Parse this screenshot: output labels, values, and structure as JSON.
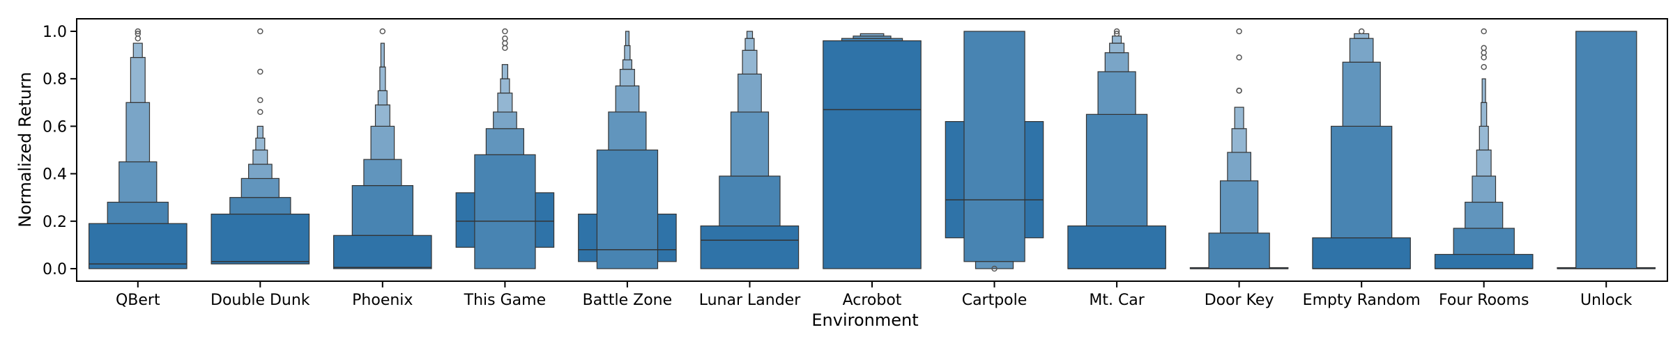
{
  "chart_data": {
    "type": "boxen",
    "xlabel": "Environment",
    "ylabel": "Normalized Return",
    "ylim": [
      -0.05,
      1.05
    ],
    "yticks": [
      0.0,
      0.2,
      0.4,
      0.6,
      0.8,
      1.0
    ],
    "ytick_labels": [
      "0.0",
      "0.2",
      "0.4",
      "0.6",
      "0.8",
      "1.0"
    ],
    "grid": false,
    "colors": {
      "box": "#2f73a8",
      "edge": "#333333",
      "outlier": "#555555"
    },
    "categories": [
      {
        "name": "QBert",
        "median": 0.02,
        "boxes": [
          [
            0.0,
            0.19
          ],
          [
            0.19,
            0.28
          ],
          [
            0.28,
            0.45
          ],
          [
            0.45,
            0.7
          ],
          [
            0.7,
            0.89
          ],
          [
            0.89,
            0.95
          ]
        ],
        "outliers": [
          0.97,
          0.99,
          1.0
        ]
      },
      {
        "name": "Double Dunk",
        "median": 0.03,
        "boxes": [
          [
            0.02,
            0.23
          ],
          [
            0.23,
            0.3
          ],
          [
            0.3,
            0.38
          ],
          [
            0.38,
            0.44
          ],
          [
            0.44,
            0.5
          ],
          [
            0.5,
            0.55
          ],
          [
            0.55,
            0.6
          ]
        ],
        "outliers": [
          0.66,
          0.71,
          0.83,
          1.0
        ]
      },
      {
        "name": "Phoenix",
        "median": 0.005,
        "boxes": [
          [
            0.0,
            0.14
          ],
          [
            0.14,
            0.35
          ],
          [
            0.35,
            0.46
          ],
          [
            0.46,
            0.6
          ],
          [
            0.6,
            0.69
          ],
          [
            0.69,
            0.75
          ],
          [
            0.75,
            0.85
          ],
          [
            0.85,
            0.95
          ]
        ],
        "outliers": [
          1.0
        ]
      },
      {
        "name": "This Game",
        "median": 0.2,
        "boxes": [
          [
            0.09,
            0.32
          ],
          [
            0.0,
            0.48
          ],
          [
            0.48,
            0.59
          ],
          [
            0.59,
            0.66
          ],
          [
            0.66,
            0.74
          ],
          [
            0.74,
            0.8
          ],
          [
            0.8,
            0.86
          ]
        ],
        "outliers": [
          0.93,
          0.95,
          0.97,
          1.0
        ]
      },
      {
        "name": "Battle Zone",
        "median": 0.08,
        "boxes": [
          [
            0.03,
            0.23
          ],
          [
            0.0,
            0.5
          ],
          [
            0.5,
            0.66
          ],
          [
            0.66,
            0.77
          ],
          [
            0.77,
            0.84
          ],
          [
            0.84,
            0.88
          ],
          [
            0.88,
            0.94
          ],
          [
            0.94,
            1.0
          ]
        ],
        "outliers": []
      },
      {
        "name": "Lunar Lander",
        "median": 0.12,
        "boxes": [
          [
            0.0,
            0.18
          ],
          [
            0.18,
            0.39
          ],
          [
            0.39,
            0.66
          ],
          [
            0.66,
            0.82
          ],
          [
            0.82,
            0.92
          ],
          [
            0.92,
            0.97
          ],
          [
            0.97,
            1.0
          ]
        ],
        "outliers": []
      },
      {
        "name": "Acrobot",
        "median": 0.67,
        "boxes": [
          [
            0.0,
            0.96
          ],
          [
            0.96,
            0.97
          ],
          [
            0.97,
            0.98
          ],
          [
            0.98,
            0.99
          ]
        ],
        "outliers": []
      },
      {
        "name": "Cartpole",
        "median": 0.29,
        "boxes": [
          [
            0.13,
            0.62
          ],
          [
            0.03,
            1.0
          ],
          [
            0.0,
            0.03
          ]
        ],
        "outliers": [
          0.0
        ]
      },
      {
        "name": "Mt. Car",
        "median": 0.0,
        "boxes": [
          [
            0.0,
            0.18
          ],
          [
            0.18,
            0.65
          ],
          [
            0.65,
            0.83
          ],
          [
            0.83,
            0.91
          ],
          [
            0.91,
            0.95
          ],
          [
            0.95,
            0.98
          ]
        ],
        "outliers": [
          0.99,
          1.0
        ]
      },
      {
        "name": "Door Key",
        "median": 0.0,
        "boxes": [
          [
            0.0,
            0.0
          ],
          [
            0.0,
            0.15
          ],
          [
            0.15,
            0.37
          ],
          [
            0.37,
            0.49
          ],
          [
            0.49,
            0.59
          ],
          [
            0.59,
            0.68
          ]
        ],
        "outliers": [
          0.75,
          0.75,
          0.89,
          1.0
        ]
      },
      {
        "name": "Empty Random",
        "median": 0.0,
        "boxes": [
          [
            0.0,
            0.13
          ],
          [
            0.13,
            0.6
          ],
          [
            0.6,
            0.87
          ],
          [
            0.87,
            0.97
          ],
          [
            0.97,
            0.99
          ]
        ],
        "outliers": [
          1.0
        ]
      },
      {
        "name": "Four Rooms",
        "median": 0.0,
        "boxes": [
          [
            0.0,
            0.06
          ],
          [
            0.06,
            0.17
          ],
          [
            0.17,
            0.28
          ],
          [
            0.28,
            0.39
          ],
          [
            0.39,
            0.5
          ],
          [
            0.5,
            0.6
          ],
          [
            0.6,
            0.7
          ],
          [
            0.7,
            0.8
          ]
        ],
        "outliers": [
          0.85,
          0.89,
          0.91,
          0.93,
          1.0
        ]
      },
      {
        "name": "Unlock",
        "median": 0.0,
        "boxes": [
          [
            0.0,
            0.0
          ],
          [
            0.0,
            1.0
          ]
        ],
        "outliers": []
      }
    ]
  }
}
